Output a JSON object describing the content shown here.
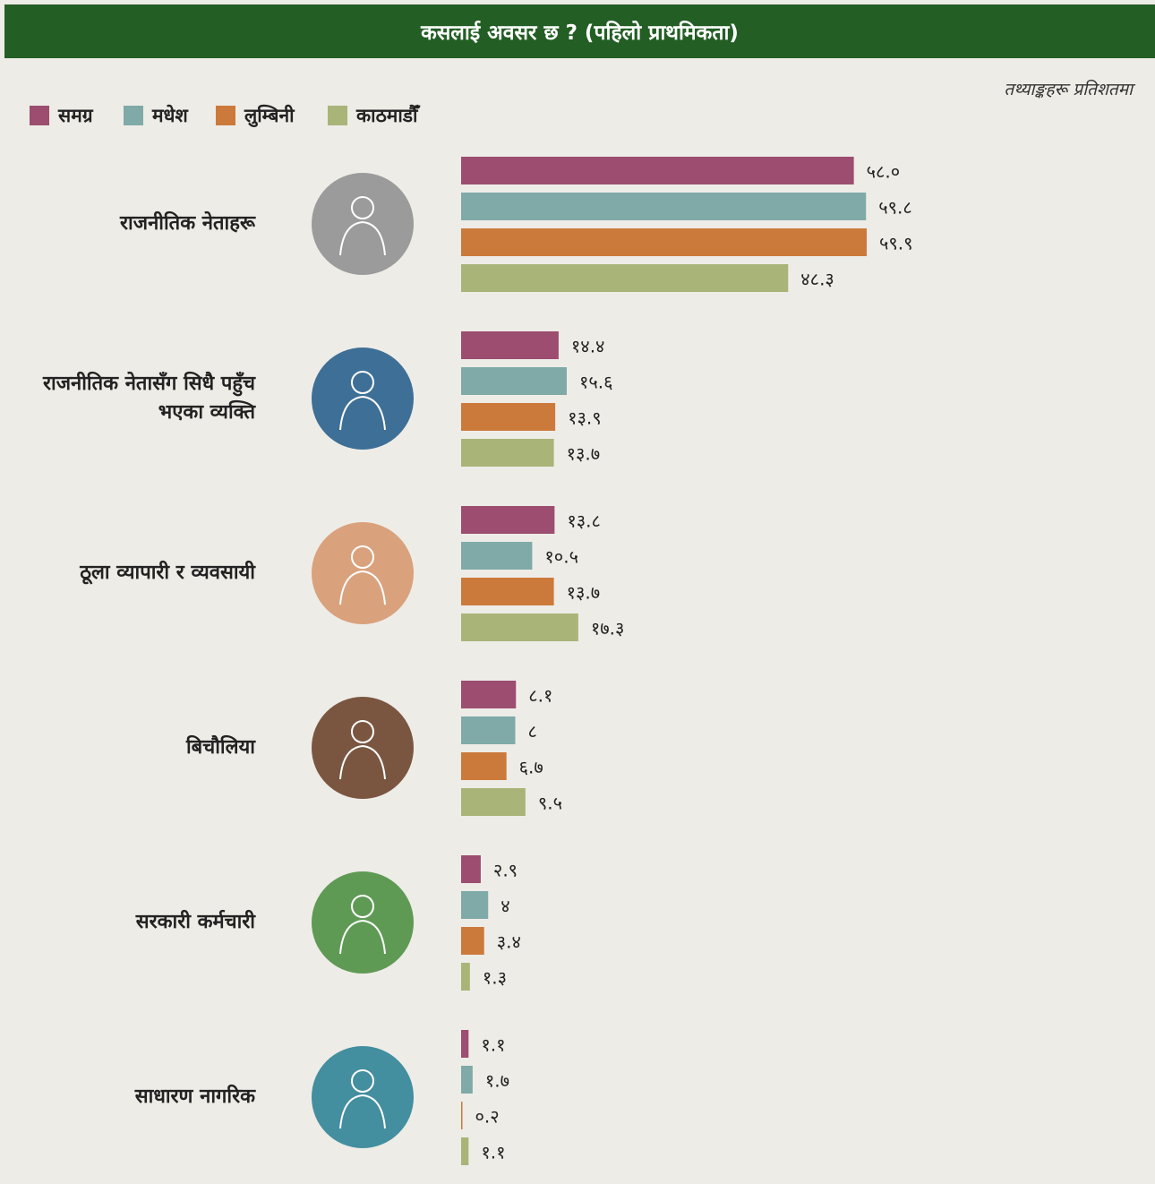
{
  "chart_data": {
    "type": "bar",
    "orientation": "horizontal",
    "title": "कसलाई अवसर छ ? (पहिलो प्राथमिकता)",
    "note": "तथ्याङ्कहरू प्रतिशतमा",
    "categories": [
      "राजनीतिक नेताहरू",
      "राजनीतिक नेतासँग सिधै पहुँच भएका व्यक्ति",
      "ठूला व्यापारी र व्यवसायी",
      "बिचौलिया",
      "सरकारी कर्मचारी",
      "साधारण नागरिक"
    ],
    "series": [
      {
        "name": "समग्र",
        "color": "#9c4d70",
        "values": [
          58.0,
          14.4,
          13.8,
          8.1,
          2.9,
          1.1
        ],
        "value_labels": [
          "५८.०",
          "१४.४",
          "१३.८",
          "८.१",
          "२.९",
          "१.१"
        ]
      },
      {
        "name": "मधेश",
        "color": "#7faaa8",
        "values": [
          59.8,
          15.6,
          10.5,
          8,
          4,
          1.7
        ],
        "value_labels": [
          "५९.८",
          "१५.६",
          "१०.५",
          "८",
          "४",
          "१.७"
        ]
      },
      {
        "name": "लुम्बिनी",
        "color": "#cb7a3b",
        "values": [
          59.9,
          13.9,
          13.7,
          6.7,
          3.4,
          0.2
        ],
        "value_labels": [
          "५९.९",
          "१३.९",
          "१३.७",
          "६.७",
          "३.४",
          "०.२"
        ]
      },
      {
        "name": "काठमाडौँ",
        "color": "#a9b478",
        "values": [
          48.3,
          13.7,
          17.3,
          9.5,
          1.3,
          1.1
        ],
        "value_labels": [
          "४८.३",
          "१३.७",
          "१७.३",
          "९.५",
          "१.३",
          "१.१"
        ]
      }
    ],
    "legend": "top-left"
  }
}
